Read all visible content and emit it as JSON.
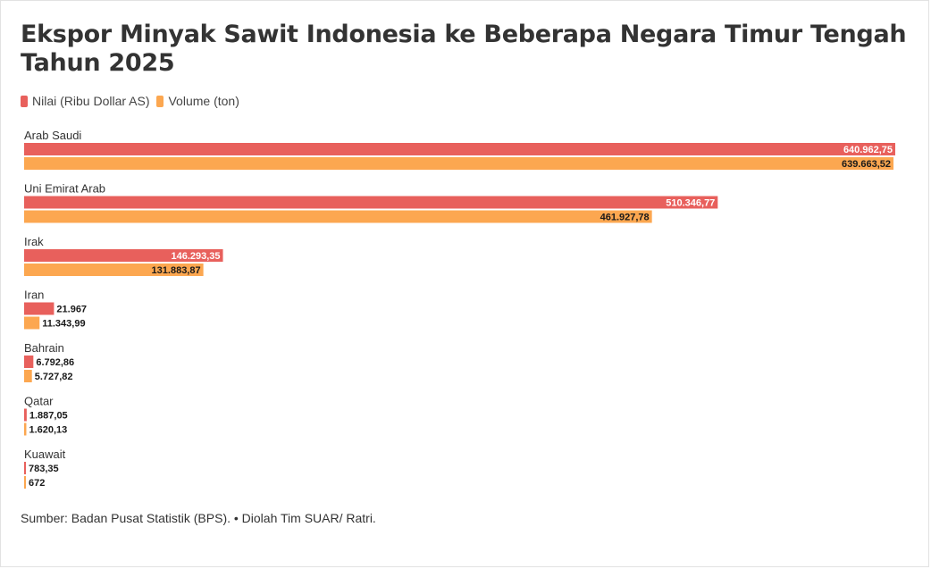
{
  "title": "Ekspor Minyak Sawit Indonesia ke Beberapa Negara Timur Tengah Tahun 2025",
  "legend": {
    "nilai": "Nilai (Ribu Dollar AS)",
    "volume": "Volume (ton)"
  },
  "source": "Sumber: Badan Pusat Statistik (BPS). • Diolah Tim SUAR/ Ratri.",
  "colors": {
    "nilai": "#e8605c",
    "volume": "#fca750"
  },
  "chart_data": {
    "type": "bar",
    "orientation": "horizontal",
    "title": "Ekspor Minyak Sawit Indonesia ke Beberapa Negara Timur Tengah Tahun 2025",
    "categories": [
      "Arab Saudi",
      "Uni Emirat Arab",
      "Irak",
      "Iran",
      "Bahrain",
      "Qatar",
      "Kuawait"
    ],
    "series": [
      {
        "name": "Nilai (Ribu Dollar AS)",
        "values": [
          640962.75,
          510346.77,
          146293.35,
          21967,
          6792.86,
          1887.05,
          783.35
        ],
        "labels": [
          "640.962,75",
          "510.346,77",
          "146.293,35",
          "21.967",
          "6.792,86",
          "1.887,05",
          "783,35"
        ]
      },
      {
        "name": "Volume (ton)",
        "values": [
          639663.52,
          461927.78,
          131883.87,
          11343.99,
          5727.82,
          1620.13,
          672
        ],
        "labels": [
          "639.663,52",
          "461.927,78",
          "131.883,87",
          "11.343,99",
          "5.727,82",
          "1.620,13",
          "672"
        ]
      }
    ],
    "xlim": [
      0,
      640962.75
    ],
    "legend_position": "top-left",
    "grid": false
  }
}
